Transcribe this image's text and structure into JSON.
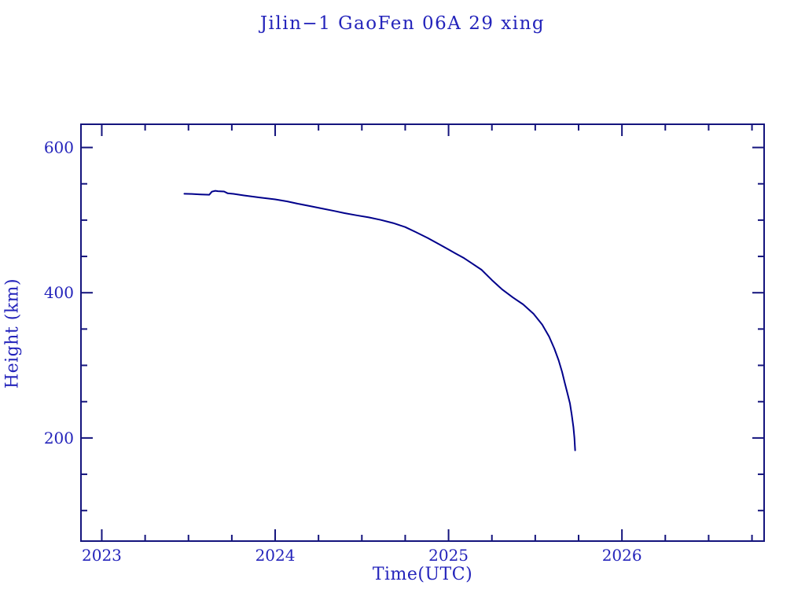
{
  "page": {
    "background": "#ffffff"
  },
  "colors": {
    "axis": "#14147d",
    "text": "#2424bb",
    "curve": "#00008b",
    "background": "#ffffff"
  },
  "chart_data": {
    "type": "line",
    "title": "Jilin−1 GaoFen 06A 29 xing",
    "xlabel": "Time(UTC)",
    "ylabel": "Height (km)",
    "xlim": [
      2022.88,
      2026.82
    ],
    "ylim": [
      58,
      632
    ],
    "x_major_ticks": [
      2023,
      2024,
      2025,
      2026
    ],
    "x_minor_step": 0.25,
    "y_major_ticks": [
      200,
      400,
      600
    ],
    "y_minor_step": 50,
    "grid": false,
    "legend": "none",
    "series": [
      {
        "name": "orbit-height-km",
        "color": "#00008b",
        "points": [
          [
            2023.476,
            536.3
          ],
          [
            2023.52,
            536.0
          ],
          [
            2023.57,
            535.4
          ],
          [
            2023.62,
            535.0
          ],
          [
            2023.635,
            539.2
          ],
          [
            2023.655,
            540.4
          ],
          [
            2023.67,
            539.8
          ],
          [
            2023.705,
            539.4
          ],
          [
            2023.725,
            537.0
          ],
          [
            2023.76,
            536.2
          ],
          [
            2023.82,
            534.0
          ],
          [
            2023.91,
            531.2
          ],
          [
            2024.0,
            528.6
          ],
          [
            2024.07,
            525.8
          ],
          [
            2024.13,
            522.6
          ],
          [
            2024.2,
            519.4
          ],
          [
            2024.27,
            516.0
          ],
          [
            2024.34,
            512.6
          ],
          [
            2024.4,
            509.6
          ],
          [
            2024.47,
            506.6
          ],
          [
            2024.54,
            503.8
          ],
          [
            2024.61,
            500.2
          ],
          [
            2024.68,
            496.0
          ],
          [
            2024.75,
            490.4
          ],
          [
            2024.81,
            483.6
          ],
          [
            2024.88,
            475.4
          ],
          [
            2024.95,
            466.2
          ],
          [
            2025.0,
            459.5
          ],
          [
            2025.04,
            454.2
          ],
          [
            2025.09,
            447.6
          ],
          [
            2025.13,
            441.2
          ],
          [
            2025.19,
            431.6
          ],
          [
            2025.25,
            417.4
          ],
          [
            2025.31,
            404.4
          ],
          [
            2025.37,
            393.6
          ],
          [
            2025.43,
            384.0
          ],
          [
            2025.49,
            371.0
          ],
          [
            2025.54,
            356.0
          ],
          [
            2025.58,
            339.6
          ],
          [
            2025.61,
            323.2
          ],
          [
            2025.635,
            307.0
          ],
          [
            2025.655,
            291.0
          ],
          [
            2025.67,
            276.0
          ],
          [
            2025.685,
            262.0
          ],
          [
            2025.7,
            247.6
          ],
          [
            2025.71,
            232.5
          ],
          [
            2025.72,
            215.0
          ],
          [
            2025.726,
            200.0
          ],
          [
            2025.73,
            183.0
          ]
        ]
      }
    ]
  }
}
